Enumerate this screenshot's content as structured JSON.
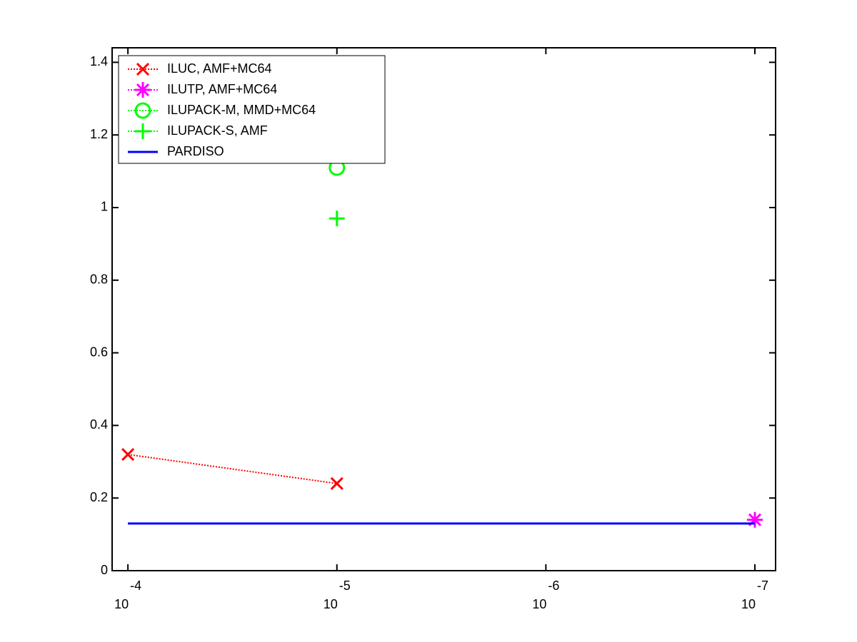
{
  "chart_data": {
    "type": "line",
    "xscale": "log",
    "x_reversed": true,
    "xlim": [
      0.000119,
      7.96e-08
    ],
    "ylim": [
      0,
      1.44
    ],
    "xticks": [
      {
        "value": 0.0001,
        "label": "10",
        "exponent": "-4"
      },
      {
        "value": 1e-05,
        "label": "10",
        "exponent": "-5"
      },
      {
        "value": 1e-06,
        "label": "10",
        "exponent": "-6"
      },
      {
        "value": 1e-07,
        "label": "10",
        "exponent": "-7"
      }
    ],
    "yticks": [
      0,
      0.2,
      0.4,
      0.6,
      0.8,
      1,
      1.2,
      1.4
    ],
    "legend": "upper left",
    "series": [
      {
        "name": "ILUC, AMF+MC64",
        "color": "#ff0000",
        "marker": "x",
        "linestyle": "dotted",
        "x": [
          0.0001,
          1e-05
        ],
        "values": [
          0.32,
          0.24
        ]
      },
      {
        "name": "ILUTP, AMF+MC64",
        "color": "#ff00ff",
        "marker": "*",
        "linestyle": "dotted",
        "x": [
          1e-07
        ],
        "values": [
          0.14
        ]
      },
      {
        "name": "ILUPACK-M, MMD+MC64",
        "color": "#00ff00",
        "marker": "o",
        "linestyle": "dotted",
        "x": [
          1e-05
        ],
        "values": [
          1.11
        ]
      },
      {
        "name": "ILUPACK-S, AMF",
        "color": "#00ff00",
        "marker": "+",
        "linestyle": "dotted",
        "x": [
          1e-05
        ],
        "values": [
          0.97
        ]
      },
      {
        "name": "PARDISO",
        "color": "#0000ff",
        "marker": "none",
        "linestyle": "solid",
        "x": [
          0.0001,
          1e-07
        ],
        "values": [
          0.13,
          0.13
        ]
      }
    ]
  }
}
